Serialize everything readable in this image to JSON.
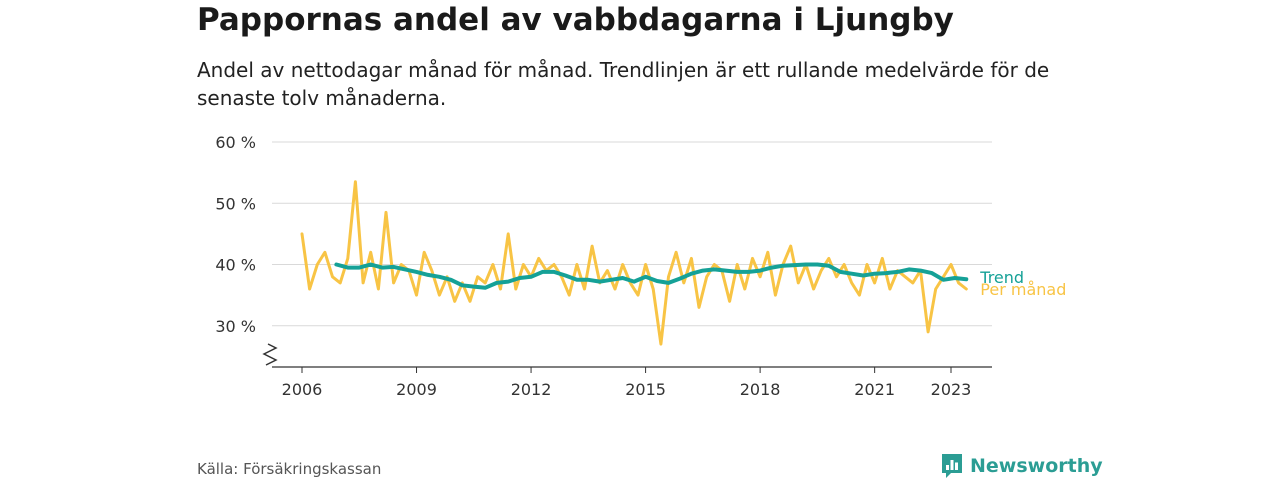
{
  "header": {
    "title": "Pappornas andel av vabbdagarna i Ljungby",
    "subtitle": "Andel av nettodagar månad för månad. Trendlinjen är ett rullande medelvärde för de senaste tolv månaderna."
  },
  "footer": {
    "source": "Källa: Försäkringskassan",
    "brand": "Newsworthy"
  },
  "colors": {
    "monthly": "#f8c445",
    "trend": "#15a197",
    "brand": "#2b9d94",
    "grid": "#d9d9d9",
    "axis": "#333333"
  },
  "icons": {
    "brand_logo": "bar-chart-bubble-icon",
    "axis_break": "zigzag-axis-break-icon"
  },
  "chart_data": {
    "type": "line",
    "title": "Pappornas andel av vabbdagarna i Ljungby",
    "ylim": [
      23,
      60
    ],
    "xlim": [
      2005.6,
      2024.0
    ],
    "y_ticks": [
      {
        "value": 30,
        "label": "30 %"
      },
      {
        "value": 40,
        "label": "40 %"
      },
      {
        "value": 50,
        "label": "50 %"
      },
      {
        "value": 60,
        "label": "60 %"
      }
    ],
    "x_ticks": [
      {
        "value": 2006,
        "label": "2006"
      },
      {
        "value": 2009,
        "label": "2009"
      },
      {
        "value": 2012,
        "label": "2012"
      },
      {
        "value": 2015,
        "label": "2015"
      },
      {
        "value": 2018,
        "label": "2018"
      },
      {
        "value": 2021,
        "label": "2021"
      },
      {
        "value": 2023,
        "label": "2023"
      }
    ],
    "grid": true,
    "axis_break": true,
    "series": [
      {
        "name": "Per månad",
        "x": [
          2006.0,
          2006.2,
          2006.4,
          2006.6,
          2006.8,
          2007.0,
          2007.2,
          2007.4,
          2007.6,
          2007.8,
          2008.0,
          2008.2,
          2008.4,
          2008.6,
          2008.8,
          2009.0,
          2009.2,
          2009.4,
          2009.6,
          2009.8,
          2010.0,
          2010.2,
          2010.4,
          2010.6,
          2010.8,
          2011.0,
          2011.2,
          2011.4,
          2011.6,
          2011.8,
          2012.0,
          2012.2,
          2012.4,
          2012.6,
          2012.8,
          2013.0,
          2013.2,
          2013.4,
          2013.6,
          2013.8,
          2014.0,
          2014.2,
          2014.4,
          2014.6,
          2014.8,
          2015.0,
          2015.2,
          2015.4,
          2015.6,
          2015.8,
          2016.0,
          2016.2,
          2016.4,
          2016.6,
          2016.8,
          2017.0,
          2017.2,
          2017.4,
          2017.6,
          2017.8,
          2018.0,
          2018.2,
          2018.4,
          2018.6,
          2018.8,
          2019.0,
          2019.2,
          2019.4,
          2019.6,
          2019.8,
          2020.0,
          2020.2,
          2020.4,
          2020.6,
          2020.8,
          2021.0,
          2021.2,
          2021.4,
          2021.6,
          2021.8,
          2022.0,
          2022.2,
          2022.4,
          2022.6,
          2022.8,
          2023.0,
          2023.2,
          2023.4
        ],
        "values": [
          45,
          36,
          40,
          42,
          38,
          37,
          41,
          53.5,
          37,
          42,
          36,
          48.5,
          37,
          40,
          39,
          35,
          42,
          39,
          35,
          38,
          34,
          37,
          34,
          38,
          37,
          40,
          36,
          45,
          36,
          40,
          38,
          41,
          39,
          40,
          38,
          35,
          40,
          36,
          43,
          37,
          39,
          36,
          40,
          37,
          35,
          40,
          36,
          27,
          38,
          42,
          37,
          41,
          33,
          38,
          40,
          39,
          34,
          40,
          36,
          41,
          38,
          42,
          35,
          40,
          43,
          37,
          40,
          36,
          39,
          41,
          38,
          40,
          37,
          35,
          40,
          37,
          41,
          36,
          39,
          38,
          37,
          39,
          29,
          36,
          38,
          40,
          37,
          36
        ]
      },
      {
        "name": "Trend",
        "x": [
          2006.9,
          2007.2,
          2007.5,
          2007.8,
          2008.1,
          2008.4,
          2008.7,
          2009.0,
          2009.3,
          2009.6,
          2009.9,
          2010.2,
          2010.5,
          2010.8,
          2011.1,
          2011.4,
          2011.7,
          2012.0,
          2012.3,
          2012.6,
          2012.9,
          2013.2,
          2013.5,
          2013.8,
          2014.1,
          2014.4,
          2014.7,
          2015.0,
          2015.3,
          2015.6,
          2015.9,
          2016.2,
          2016.5,
          2016.8,
          2017.1,
          2017.4,
          2017.7,
          2018.0,
          2018.3,
          2018.6,
          2018.9,
          2019.2,
          2019.5,
          2019.8,
          2020.1,
          2020.4,
          2020.7,
          2021.0,
          2021.3,
          2021.6,
          2021.9,
          2022.2,
          2022.5,
          2022.8,
          2023.1,
          2023.4
        ],
        "values": [
          40,
          39.5,
          39.5,
          40,
          39.5,
          39.6,
          39.2,
          38.8,
          38.3,
          38.0,
          37.5,
          36.6,
          36.4,
          36.2,
          37.0,
          37.2,
          37.8,
          38.0,
          38.8,
          38.8,
          38.2,
          37.5,
          37.5,
          37.2,
          37.5,
          37.8,
          37.2,
          38.0,
          37.3,
          37.0,
          37.7,
          38.5,
          39.0,
          39.2,
          39.0,
          38.8,
          38.8,
          39.0,
          39.5,
          39.8,
          39.9,
          40.0,
          40.0,
          39.8,
          38.8,
          38.5,
          38.2,
          38.5,
          38.6,
          38.8,
          39.2,
          39.0,
          38.6,
          37.5,
          37.8,
          37.6
        ]
      }
    ]
  }
}
